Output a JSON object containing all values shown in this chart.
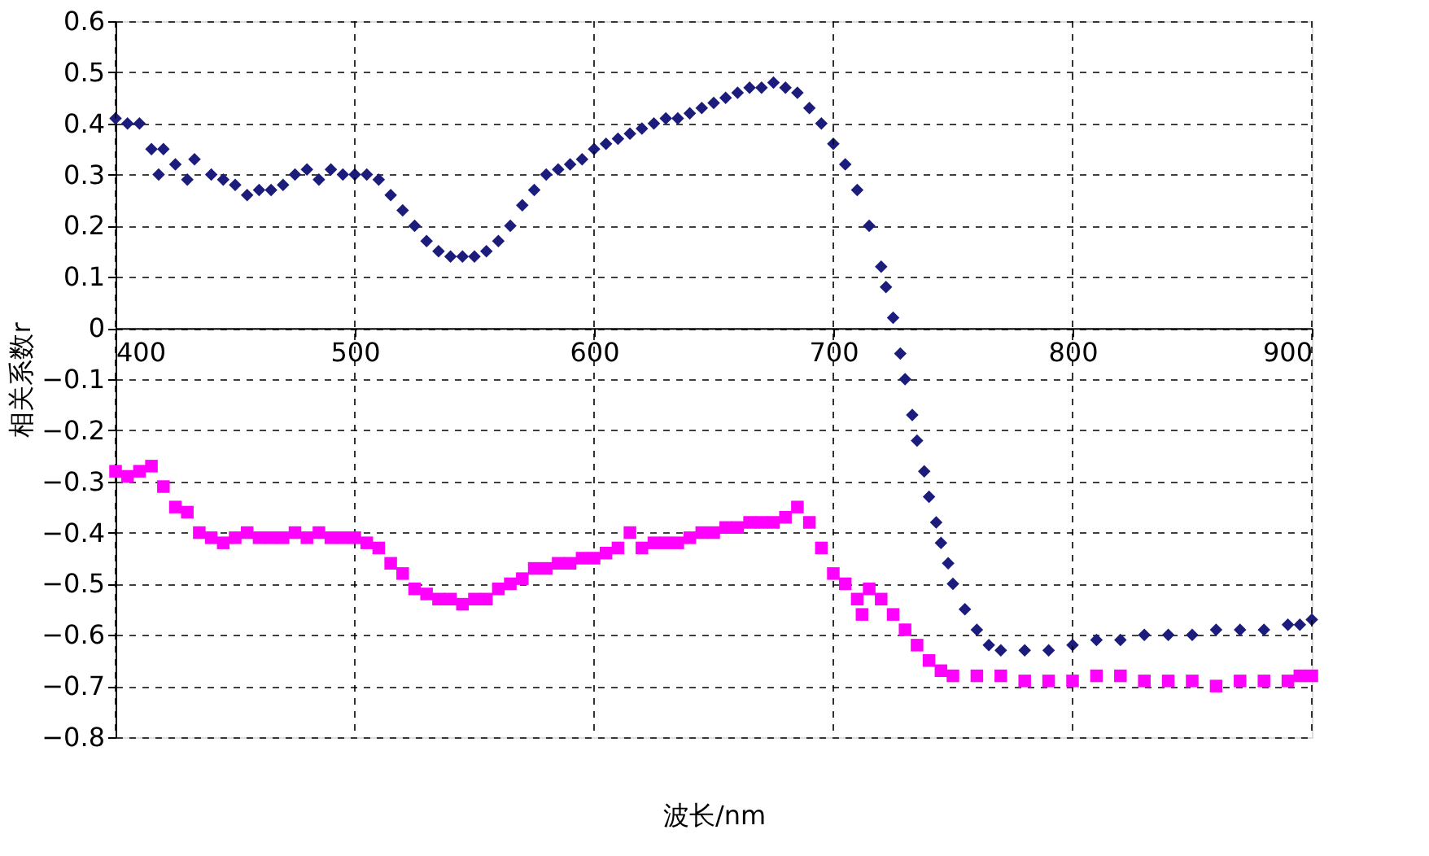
{
  "chart_data": {
    "type": "scatter",
    "xlabel": "波长/nm",
    "ylabel": "相关系数r",
    "xlim": [
      400,
      900
    ],
    "xticks": [
      400,
      500,
      600,
      700,
      800,
      900
    ],
    "ylim": [
      -0.8,
      0.6
    ],
    "yticks": [
      -0.8,
      -0.7,
      -0.6,
      -0.5,
      -0.4,
      -0.3,
      -0.2,
      -0.1,
      0,
      0.1,
      0.2,
      0.3,
      0.4,
      0.5,
      0.6
    ],
    "grid": true,
    "series": [
      {
        "color": "#1c1c7c",
        "marker": "diamond",
        "x": [
          400,
          405,
          410,
          415,
          418,
          420,
          425,
          430,
          433,
          440,
          445,
          450,
          455,
          460,
          465,
          470,
          475,
          480,
          485,
          490,
          495,
          500,
          505,
          510,
          515,
          520,
          525,
          530,
          535,
          540,
          545,
          550,
          555,
          560,
          565,
          570,
          575,
          580,
          585,
          590,
          595,
          600,
          605,
          610,
          615,
          620,
          625,
          630,
          635,
          640,
          645,
          650,
          655,
          660,
          665,
          670,
          675,
          680,
          685,
          690,
          695,
          700,
          705,
          710,
          715,
          720,
          722,
          725,
          728,
          730,
          733,
          735,
          738,
          740,
          743,
          745,
          748,
          750,
          755,
          760,
          765,
          770,
          780,
          790,
          800,
          810,
          820,
          830,
          840,
          850,
          860,
          870,
          880,
          890,
          895,
          900
        ],
        "values": [
          0.41,
          0.4,
          0.4,
          0.35,
          0.3,
          0.35,
          0.32,
          0.29,
          0.33,
          0.3,
          0.29,
          0.28,
          0.26,
          0.27,
          0.27,
          0.28,
          0.3,
          0.31,
          0.29,
          0.31,
          0.3,
          0.3,
          0.3,
          0.29,
          0.26,
          0.23,
          0.2,
          0.17,
          0.15,
          0.14,
          0.14,
          0.14,
          0.15,
          0.17,
          0.2,
          0.24,
          0.27,
          0.3,
          0.31,
          0.32,
          0.33,
          0.35,
          0.36,
          0.37,
          0.38,
          0.39,
          0.4,
          0.41,
          0.41,
          0.42,
          0.43,
          0.44,
          0.45,
          0.46,
          0.47,
          0.47,
          0.48,
          0.47,
          0.46,
          0.43,
          0.4,
          0.36,
          0.32,
          0.27,
          0.2,
          0.12,
          0.08,
          0.02,
          -0.05,
          -0.1,
          -0.17,
          -0.22,
          -0.28,
          -0.33,
          -0.38,
          -0.42,
          -0.46,
          -0.5,
          -0.55,
          -0.59,
          -0.62,
          -0.63,
          -0.63,
          -0.63,
          -0.62,
          -0.61,
          -0.61,
          -0.6,
          -0.6,
          -0.6,
          -0.59,
          -0.59,
          -0.59,
          -0.58,
          -0.58,
          -0.57
        ]
      },
      {
        "color": "#ff00ff",
        "marker": "square",
        "x": [
          400,
          405,
          410,
          415,
          420,
          425,
          430,
          435,
          440,
          445,
          450,
          455,
          460,
          465,
          470,
          475,
          480,
          485,
          490,
          495,
          500,
          505,
          510,
          515,
          520,
          525,
          530,
          535,
          540,
          545,
          550,
          555,
          560,
          565,
          570,
          575,
          580,
          585,
          590,
          595,
          600,
          605,
          610,
          615,
          620,
          625,
          630,
          635,
          640,
          645,
          650,
          655,
          660,
          665,
          670,
          675,
          680,
          685,
          690,
          695,
          700,
          705,
          710,
          712,
          715,
          720,
          725,
          730,
          735,
          740,
          745,
          750,
          760,
          770,
          780,
          790,
          800,
          810,
          820,
          830,
          840,
          850,
          860,
          870,
          880,
          890,
          895,
          900
        ],
        "values": [
          -0.28,
          -0.29,
          -0.28,
          -0.27,
          -0.31,
          -0.35,
          -0.36,
          -0.4,
          -0.41,
          -0.42,
          -0.41,
          -0.4,
          -0.41,
          -0.41,
          -0.41,
          -0.4,
          -0.41,
          -0.4,
          -0.41,
          -0.41,
          -0.41,
          -0.42,
          -0.43,
          -0.46,
          -0.48,
          -0.51,
          -0.52,
          -0.53,
          -0.53,
          -0.54,
          -0.53,
          -0.53,
          -0.51,
          -0.5,
          -0.49,
          -0.47,
          -0.47,
          -0.46,
          -0.46,
          -0.45,
          -0.45,
          -0.44,
          -0.43,
          -0.4,
          -0.43,
          -0.42,
          -0.42,
          -0.42,
          -0.41,
          -0.4,
          -0.4,
          -0.39,
          -0.39,
          -0.38,
          -0.38,
          -0.38,
          -0.37,
          -0.35,
          -0.38,
          -0.43,
          -0.48,
          -0.5,
          -0.53,
          -0.56,
          -0.51,
          -0.53,
          -0.56,
          -0.59,
          -0.62,
          -0.65,
          -0.67,
          -0.68,
          -0.68,
          -0.68,
          -0.69,
          -0.69,
          -0.69,
          -0.68,
          -0.68,
          -0.69,
          -0.69,
          -0.69,
          -0.7,
          -0.69,
          -0.69,
          -0.69,
          -0.68,
          -0.68
        ]
      }
    ]
  }
}
